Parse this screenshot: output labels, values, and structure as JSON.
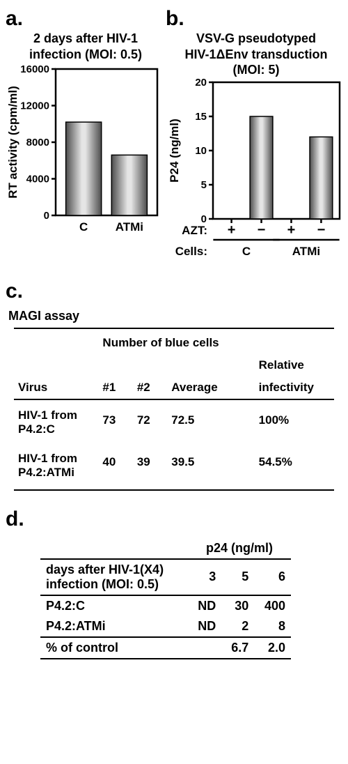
{
  "panel_a": {
    "label": "a.",
    "title_line1": "2 days after HIV-1",
    "title_line2": "infection (MOI: 0.5)",
    "chart": {
      "type": "bar",
      "y_label": "RT activity (cpm/ml)",
      "ylim": [
        0,
        16000
      ],
      "ytick_step": 4000,
      "ticks": [
        "0",
        "4000",
        "8000",
        "12000",
        "16000"
      ],
      "categories": [
        "C",
        "ATMi"
      ],
      "values": [
        10200,
        6600
      ],
      "bar_fill_left": "#e5e5e5",
      "bar_fill_right": "#4d4d4d",
      "axis_color": "#000000",
      "background_color": "#ffffff",
      "title_fontsize": 18,
      "label_fontsize": 17,
      "tick_fontsize": 15,
      "bar_width": 0.35
    }
  },
  "panel_b": {
    "label": "b.",
    "title_line1": "VSV-G pseudotyped",
    "title_line2": "HIV-1ΔEnv transduction",
    "title_line3": "(MOI: 5)",
    "chart": {
      "type": "bar",
      "y_label": "P24 (ng/ml)",
      "ylim": [
        0,
        20
      ],
      "ytick_step": 5,
      "ticks": [
        "0",
        "5",
        "10",
        "15",
        "20"
      ],
      "categories_bottom": [
        "C",
        "ATMi"
      ],
      "azt_label": "AZT:",
      "cells_label": "Cells:",
      "azt_row": [
        "+",
        "−",
        "+",
        "−"
      ],
      "values": [
        0,
        15,
        0,
        12
      ],
      "bar_fill_left": "#e5e5e5",
      "bar_fill_right": "#4d4d4d",
      "axis_color": "#000000",
      "background_color": "#ffffff",
      "title_fontsize": 18,
      "label_fontsize": 17,
      "tick_fontsize": 15,
      "bar_width": 0.18
    }
  },
  "panel_c": {
    "label": "c.",
    "section_title": "MAGI assay",
    "super_header": "Number of blue cells",
    "headers": {
      "virus": "Virus",
      "c1": "#1",
      "c2": "#2",
      "avg": "Average",
      "rel1": "Relative",
      "rel2": "infectivity"
    },
    "rows": [
      {
        "virus_l1": "HIV-1 from",
        "virus_l2": "P4.2:C",
        "c1": "73",
        "c2": "72",
        "avg": "72.5",
        "rel": "100%"
      },
      {
        "virus_l1": "HIV-1 from",
        "virus_l2": "P4.2:ATMi",
        "c1": "40",
        "c2": "39",
        "avg": "39.5",
        "rel": "54.5%"
      }
    ]
  },
  "panel_d": {
    "label": "d.",
    "header_unit": "p24 (ng/ml)",
    "days_label_l1": "days after HIV-1(X4)",
    "days_label_l2": "infection (MOI: 0.5)",
    "day_cols": [
      "3",
      "5",
      "6"
    ],
    "rows": [
      {
        "label": "P4.2:C",
        "vals": [
          "ND",
          "30",
          "400"
        ]
      },
      {
        "label": "P4.2:ATMi",
        "vals": [
          "ND",
          "2",
          "8"
        ]
      }
    ],
    "pct_label": "% of control",
    "pct_vals": [
      "",
      "6.7",
      "2.0"
    ]
  }
}
